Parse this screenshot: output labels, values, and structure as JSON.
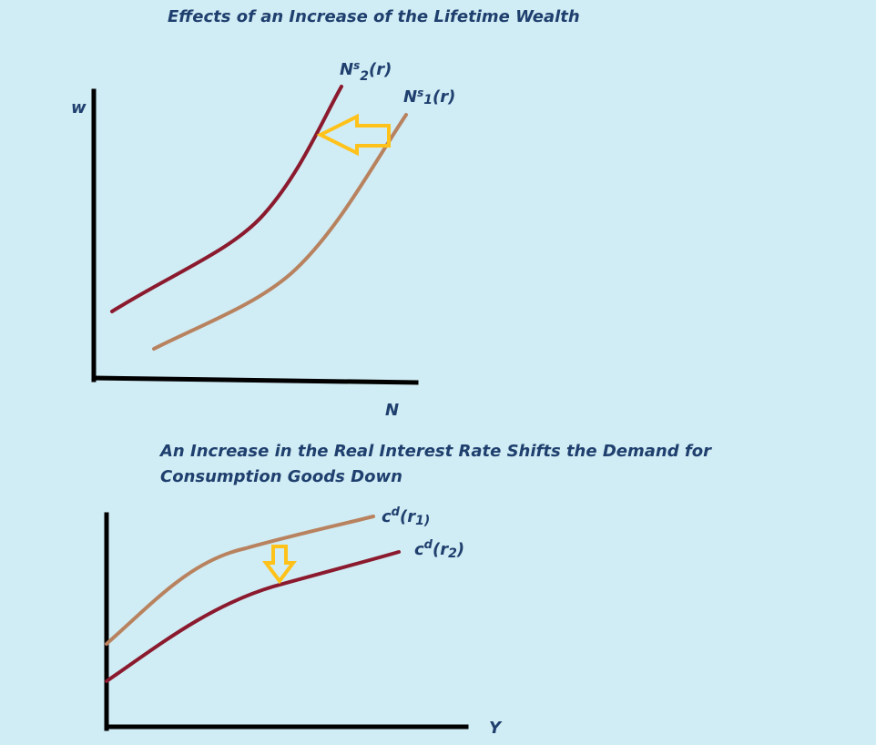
{
  "diagram1": {
    "title": "Effects of an Increase of the Lifetime Wealth",
    "y_axis_label": "w",
    "x_axis_label": "N",
    "curve_shifted": {
      "base": "N",
      "sup": "s",
      "sub": "2",
      "tail": "(r)"
    },
    "curve_original": {
      "base": "N",
      "sup": "s",
      "sub": "1",
      "tail": "(r)"
    }
  },
  "diagram2": {
    "title_line1": "An Increase in the Real Interest Rate Shifts the Demand for",
    "title_line2": "Consumption Goods Down",
    "x_axis_label": "Y",
    "curve_original": {
      "base": "c",
      "sup": "d",
      "open": "(r",
      "sub": "1)",
      "close": ""
    },
    "curve_shifted": {
      "base": "c",
      "sup": "d",
      "open": "(r",
      "sub": "2",
      "close": ")"
    }
  },
  "colors": {
    "background": "#d0ecf4",
    "shifted_curve": "#8b1a2e",
    "original_curve": "#b8825f",
    "arrow": "#ffc21a",
    "axis": "#000000",
    "text": "#1f3f6e"
  }
}
